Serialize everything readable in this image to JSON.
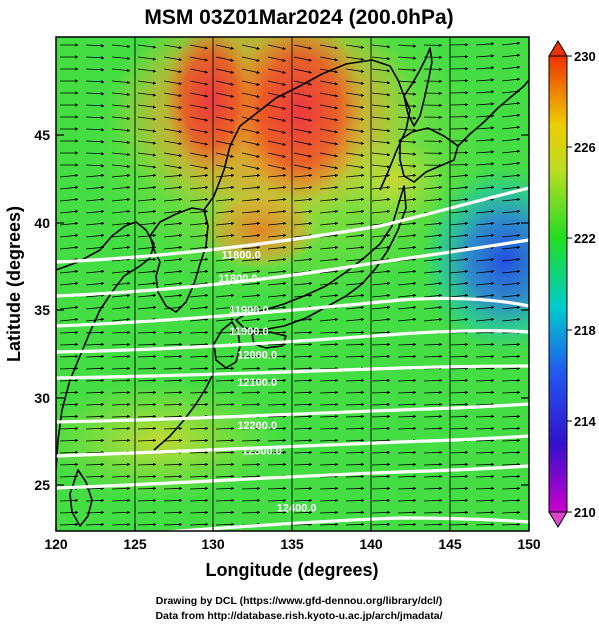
{
  "map": {
    "title": "MSM 03Z01Mar2024 (200.0hPa)",
    "x_axis": {
      "label": "Longitude (degrees)",
      "range": [
        120,
        150
      ],
      "ticks": [
        "120",
        "125",
        "130",
        "135",
        "140",
        "145",
        "150"
      ]
    },
    "y_axis": {
      "label": "Latitude  (degrees)",
      "range": [
        22.4,
        47.6
      ],
      "ticks": [
        "25",
        "30",
        "35",
        "40",
        "45"
      ]
    },
    "colorbar": {
      "range": [
        210,
        230
      ],
      "ticks": [
        "210",
        "214",
        "218",
        "222",
        "226",
        "230"
      ],
      "colors": [
        "#cc00cc",
        "#2222dd",
        "#00cccc",
        "#22dd22",
        "#eedd00",
        "#ee3300"
      ]
    },
    "contour_labels": [
      {
        "text": "11800.0",
        "lon": 130.5,
        "lat": 36.3
      },
      {
        "text": "11800.0",
        "lon": 130.3,
        "lat": 35.1
      },
      {
        "text": "11900.0",
        "lon": 131.0,
        "lat": 33.5
      },
      {
        "text": "11900.0",
        "lon": 131.0,
        "lat": 32.4
      },
      {
        "text": "12000.0",
        "lon": 131.5,
        "lat": 31.2
      },
      {
        "text": "12100.0",
        "lon": 131.5,
        "lat": 29.8
      },
      {
        "text": "12200.0",
        "lon": 131.5,
        "lat": 27.6
      },
      {
        "text": "12300.0",
        "lon": 131.8,
        "lat": 26.3
      },
      {
        "text": "12400.0",
        "lon": 134.0,
        "lat": 23.4
      }
    ],
    "credits": [
      "Drawing by DCL (https://www.gfd-dennou.org/library/dcl/)",
      "Data from http://database.rish.kyoto-u.ac.jp/arch/jmadata/"
    ],
    "colors": {
      "field_low": "#2a6ae0",
      "field_mid": "#44dd44",
      "field_high": "#f05020",
      "contour": "#ffffff",
      "vector": "#000000"
    }
  }
}
